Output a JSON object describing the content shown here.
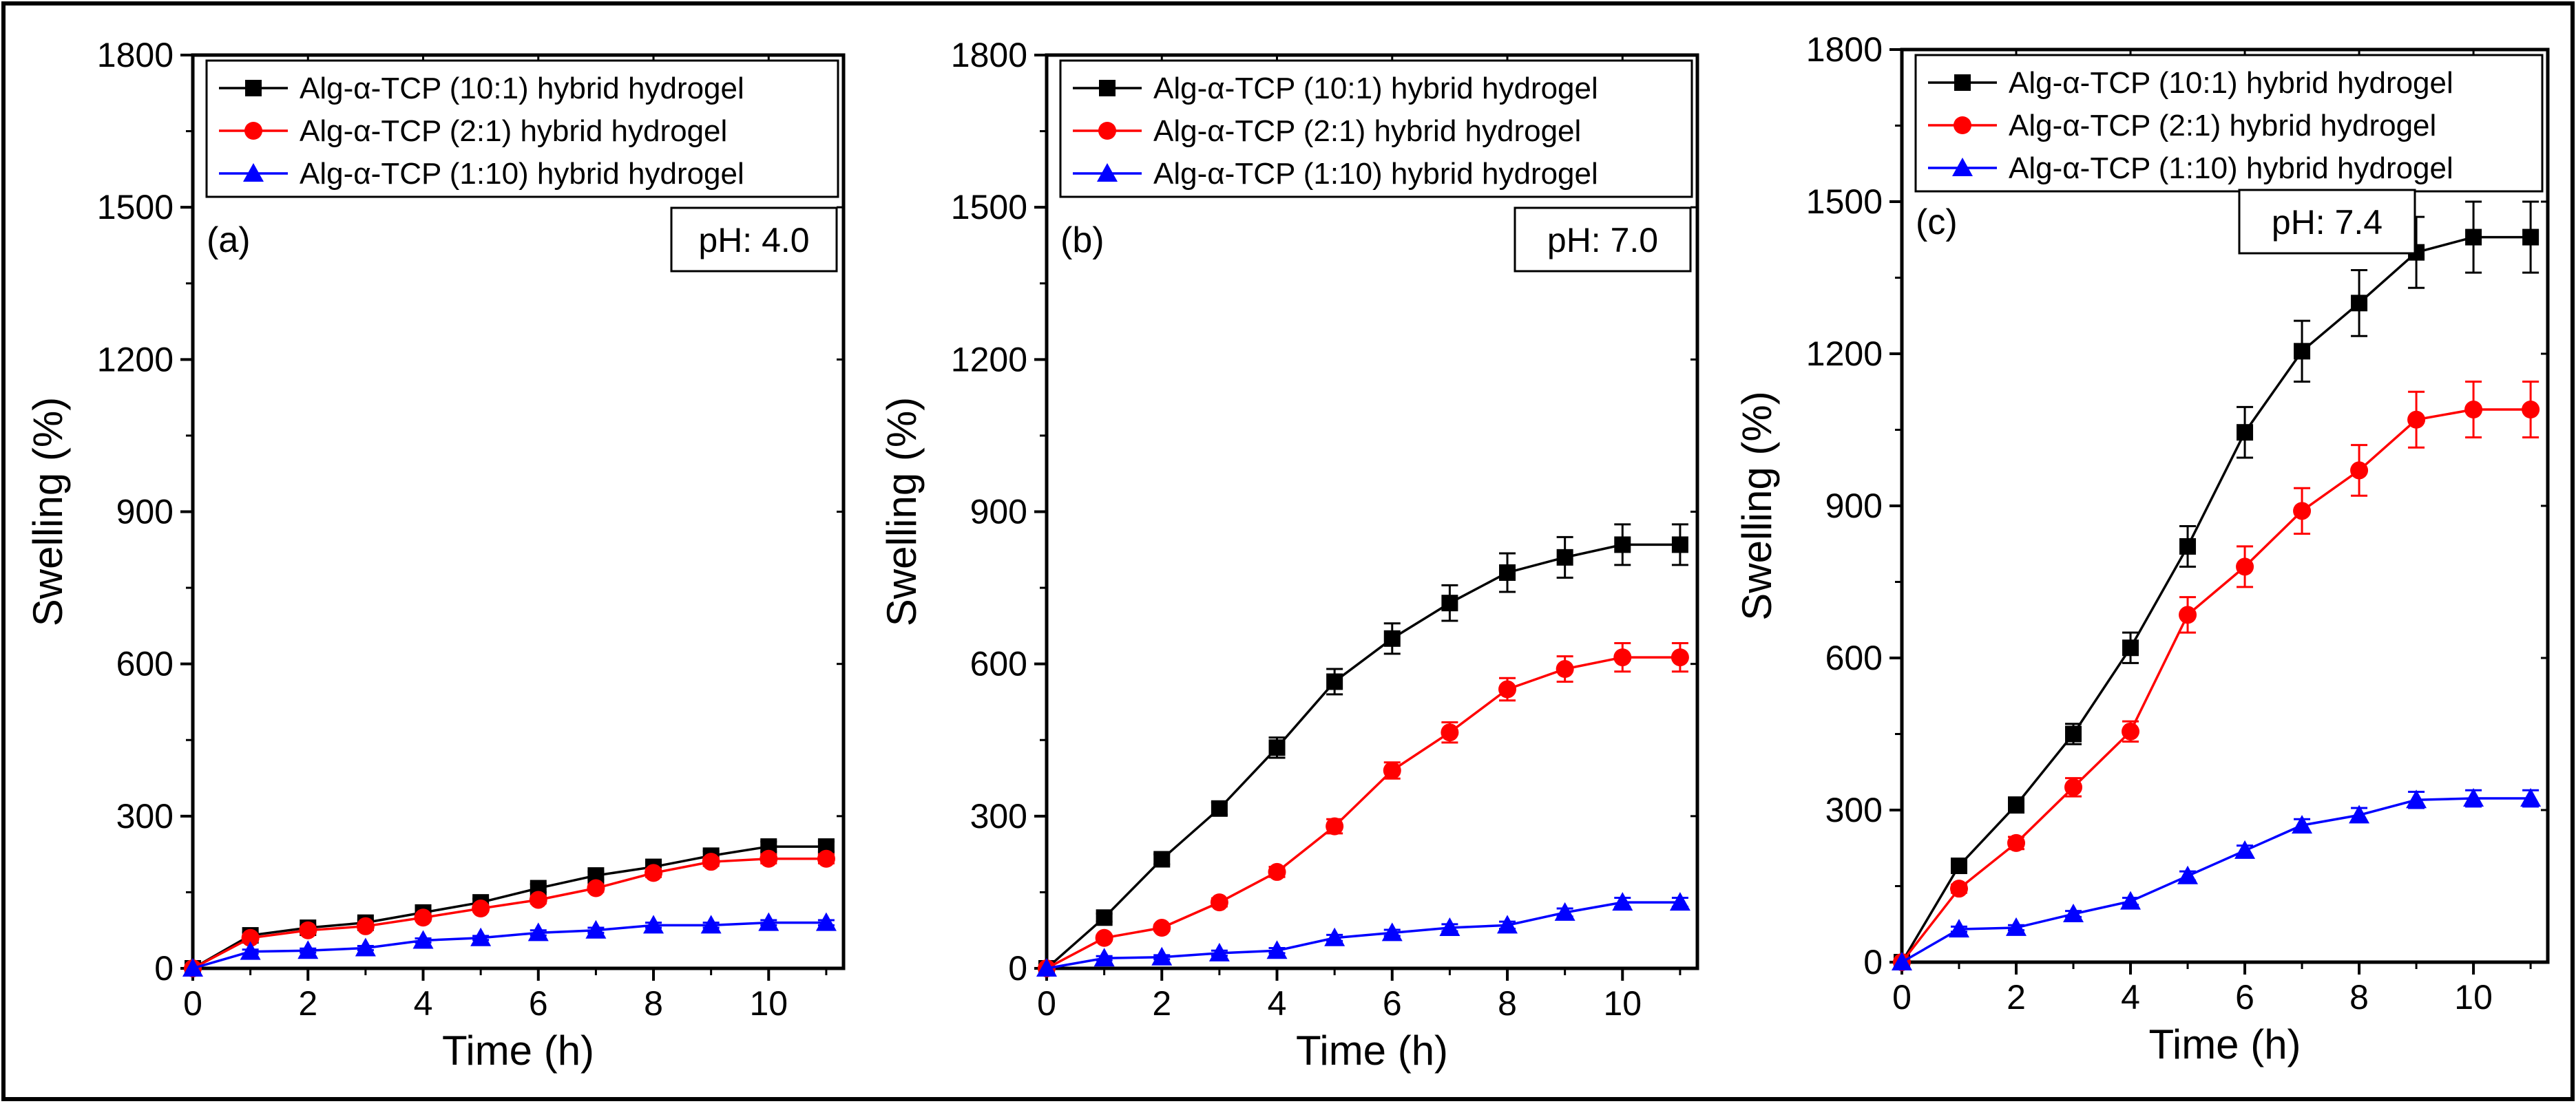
{
  "figure": {
    "border_color": "#000000"
  },
  "chart_data": [
    {
      "type": "line",
      "panel_label": "(a)",
      "ph_label": "pH: 4.0",
      "xlabel": "Time (h)",
      "ylabel": "Swelling (%)",
      "xlim": [
        0,
        11.3
      ],
      "ylim": [
        0,
        1800
      ],
      "xticks": [
        0,
        2,
        4,
        6,
        8,
        10
      ],
      "yticks": [
        0,
        300,
        600,
        900,
        1200,
        1500,
        1800
      ],
      "x": [
        0,
        1,
        2,
        3,
        4,
        5,
        6,
        7,
        8,
        9,
        10,
        11
      ],
      "series": [
        {
          "name": "Alg-α-TCP (10:1) hybrid hydrogel",
          "color": "#000000",
          "marker": "square",
          "values": [
            0,
            65,
            80,
            90,
            110,
            130,
            158,
            183,
            200,
            222,
            240,
            240
          ],
          "errors": [
            0,
            6,
            6,
            6,
            7,
            7,
            8,
            8,
            9,
            9,
            10,
            10
          ]
        },
        {
          "name": "Alg-α-TCP (2:1) hybrid hydrogel",
          "color": "#ff0000",
          "marker": "circle",
          "values": [
            0,
            60,
            75,
            83,
            100,
            118,
            135,
            158,
            188,
            210,
            216,
            216
          ],
          "errors": [
            0,
            5,
            5,
            5,
            6,
            6,
            7,
            7,
            8,
            8,
            9,
            9
          ]
        },
        {
          "name": "Alg-α-TCP (1:10) hybrid hydrogel",
          "color": "#0000ff",
          "marker": "triangle",
          "values": [
            0,
            33,
            35,
            40,
            55,
            60,
            70,
            75,
            85,
            85,
            90,
            90
          ],
          "errors": [
            0,
            4,
            4,
            4,
            4,
            4,
            5,
            5,
            5,
            5,
            5,
            5
          ]
        }
      ]
    },
    {
      "type": "line",
      "panel_label": "(b)",
      "ph_label": "pH: 7.0",
      "xlabel": "Time (h)",
      "ylabel": "Swelling (%)",
      "xlim": [
        0,
        11.3
      ],
      "ylim": [
        0,
        1800
      ],
      "xticks": [
        0,
        2,
        4,
        6,
        8,
        10
      ],
      "yticks": [
        0,
        300,
        600,
        900,
        1200,
        1500,
        1800
      ],
      "x": [
        0,
        1,
        2,
        3,
        4,
        5,
        6,
        7,
        8,
        9,
        10,
        11
      ],
      "series": [
        {
          "name": "Alg-α-TCP (10:1) hybrid hydrogel",
          "color": "#000000",
          "marker": "square",
          "values": [
            0,
            100,
            215,
            315,
            435,
            565,
            650,
            720,
            780,
            810,
            835,
            835
          ],
          "errors": [
            0,
            8,
            10,
            12,
            20,
            25,
            30,
            35,
            38,
            40,
            40,
            40
          ]
        },
        {
          "name": "Alg-α-TCP (2:1) hybrid hydrogel",
          "color": "#ff0000",
          "marker": "circle",
          "values": [
            0,
            60,
            80,
            130,
            190,
            280,
            390,
            465,
            550,
            590,
            613,
            613
          ],
          "errors": [
            0,
            5,
            6,
            8,
            10,
            14,
            16,
            20,
            22,
            25,
            28,
            28
          ]
        },
        {
          "name": "Alg-α-TCP (1:10) hybrid hydrogel",
          "color": "#0000ff",
          "marker": "triangle",
          "values": [
            0,
            20,
            22,
            30,
            35,
            60,
            70,
            80,
            85,
            110,
            130,
            130
          ],
          "errors": [
            0,
            4,
            4,
            5,
            5,
            6,
            6,
            7,
            7,
            8,
            9,
            9
          ]
        }
      ]
    },
    {
      "type": "line",
      "panel_label": "(c)",
      "ph_label": "pH: 7.4",
      "xlabel": "Time (h)",
      "ylabel": "Swelling (%)",
      "xlim": [
        0,
        11.3
      ],
      "ylim": [
        0,
        1800
      ],
      "xticks": [
        0,
        2,
        4,
        6,
        8,
        10
      ],
      "yticks": [
        0,
        300,
        600,
        900,
        1200,
        1500,
        1800
      ],
      "x": [
        0,
        1,
        2,
        3,
        4,
        5,
        6,
        7,
        8,
        9,
        10,
        11
      ],
      "series": [
        {
          "name": "Alg-α-TCP (10:1) hybrid hydrogel",
          "color": "#000000",
          "marker": "square",
          "values": [
            0,
            190,
            310,
            450,
            620,
            820,
            1045,
            1205,
            1300,
            1400,
            1430,
            1430
          ],
          "errors": [
            0,
            10,
            15,
            20,
            30,
            40,
            50,
            60,
            65,
            70,
            70,
            70
          ]
        },
        {
          "name": "Alg-α-TCP (2:1) hybrid hydrogel",
          "color": "#ff0000",
          "marker": "circle",
          "values": [
            0,
            145,
            235,
            345,
            455,
            685,
            780,
            890,
            970,
            1070,
            1090,
            1090
          ],
          "errors": [
            0,
            8,
            12,
            18,
            20,
            35,
            40,
            45,
            50,
            55,
            55,
            55
          ]
        },
        {
          "name": "Alg-α-TCP (1:10) hybrid hydrogel",
          "color": "#0000ff",
          "marker": "triangle",
          "values": [
            0,
            65,
            68,
            95,
            120,
            170,
            220,
            270,
            290,
            320,
            323,
            323
          ],
          "errors": [
            0,
            5,
            5,
            6,
            7,
            9,
            10,
            12,
            14,
            16,
            16,
            16
          ]
        }
      ]
    }
  ]
}
